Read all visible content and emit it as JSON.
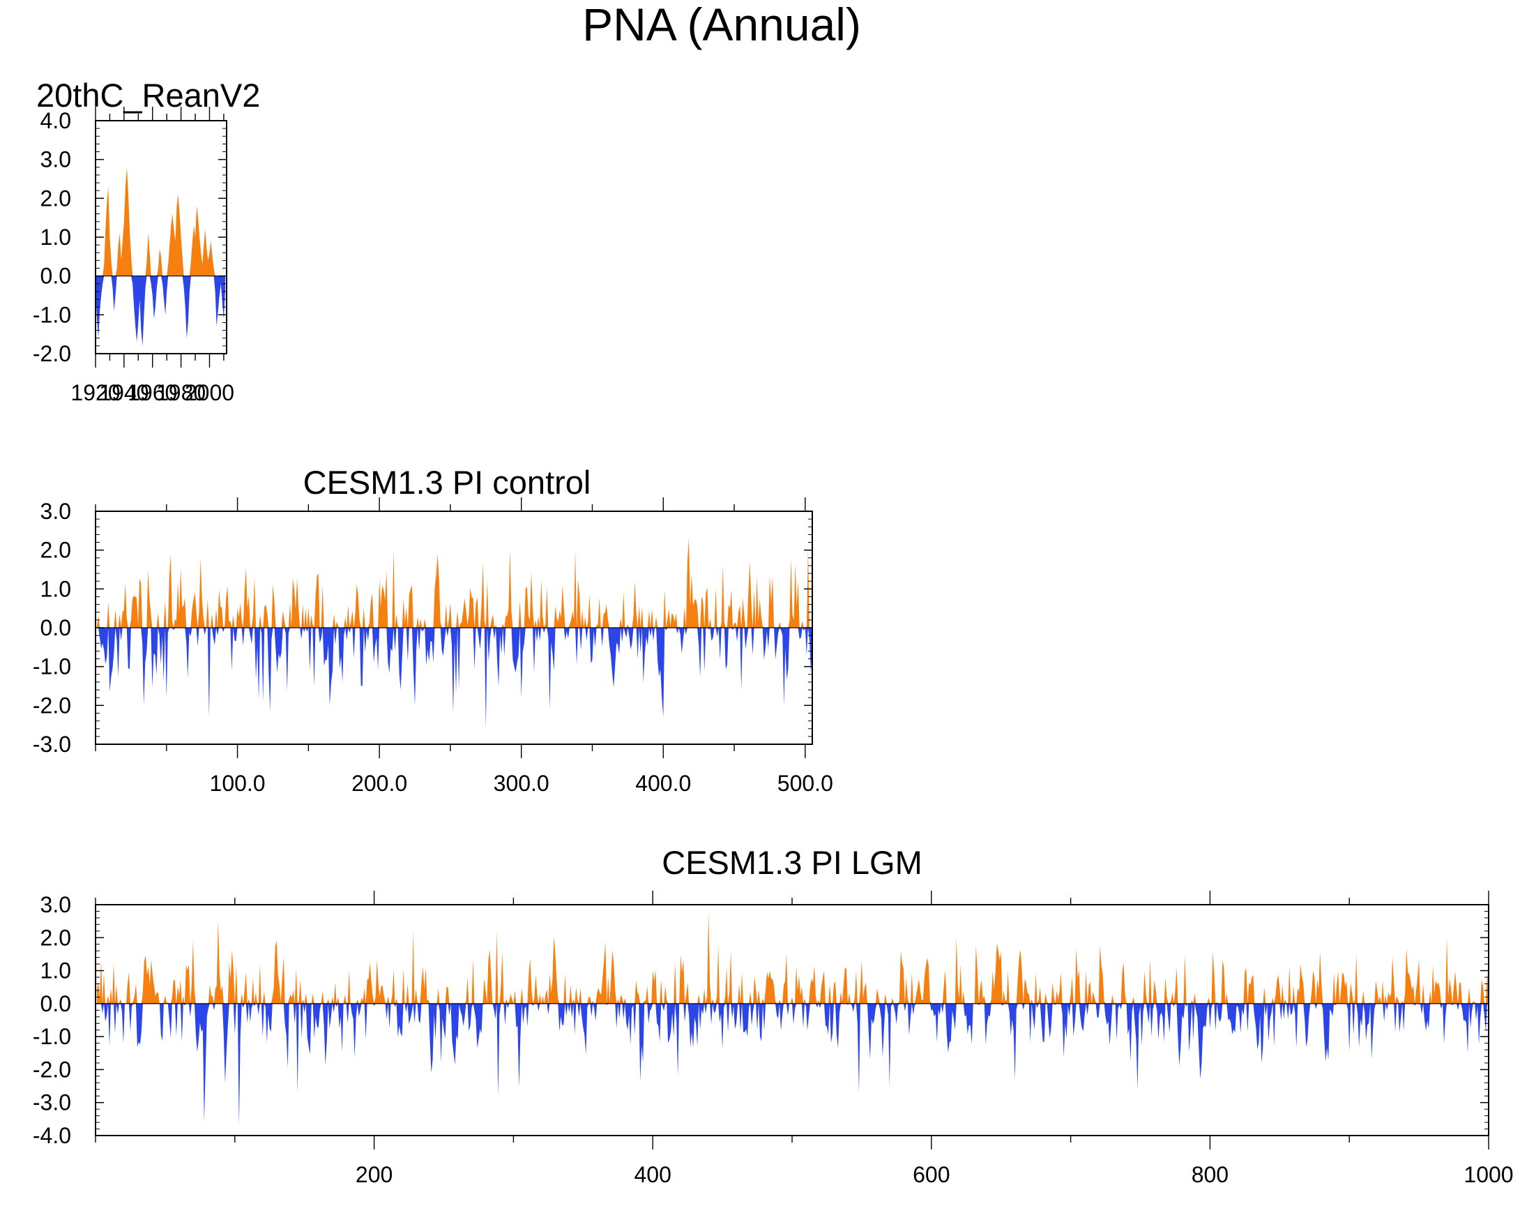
{
  "figure": {
    "title": "PNA (Annual)"
  },
  "colors": {
    "positive": "#f57f0f",
    "negative": "#2b45e8",
    "axis": "#000000"
  },
  "chart_data": [
    {
      "id": "reanalysis",
      "type": "area",
      "title": "20thC_ReanV2",
      "title_align": "left",
      "xlabel": "",
      "ylabel": "",
      "xlim": [
        1920,
        2012
      ],
      "ylim": [
        -2.0,
        4.0
      ],
      "yticks": [
        -2.0,
        -1.0,
        0.0,
        1.0,
        2.0,
        3.0,
        4.0
      ],
      "ytick_labels": [
        "-2.0",
        "-1.0",
        "0.0",
        "1.0",
        "2.0",
        "3.0",
        "4.0"
      ],
      "xticks": [
        1920,
        1940,
        1960,
        1980,
        2000
      ],
      "xtick_labels": [
        "1920",
        "1940",
        "1960",
        "1980",
        "2000"
      ],
      "x_start": 1920,
      "x_step": 1,
      "values": [
        -0.4,
        -1.1,
        -1.6,
        -0.9,
        -0.5,
        -0.2,
        0.3,
        1.2,
        1.9,
        2.3,
        1.0,
        0.4,
        -0.3,
        -0.9,
        -0.5,
        0.2,
        0.8,
        1.1,
        0.4,
        0.9,
        1.4,
        2.3,
        2.8,
        2.1,
        1.2,
        0.5,
        -0.2,
        -0.8,
        -1.3,
        -1.7,
        -1.2,
        -0.6,
        -1.4,
        -1.8,
        -1.0,
        -0.3,
        0.4,
        1.1,
        0.6,
        -0.2,
        -0.5,
        -1.1,
        -0.8,
        -0.3,
        0.2,
        0.7,
        0.5,
        -0.2,
        -0.6,
        -1.0,
        -0.4,
        0.3,
        0.8,
        1.3,
        1.6,
        1.2,
        0.9,
        1.8,
        2.1,
        1.6,
        1.0,
        0.5,
        -0.3,
        -0.8,
        -1.6,
        -1.2,
        -0.4,
        0.4,
        0.9,
        1.3,
        1.0,
        1.8,
        1.5,
        1.0,
        0.6,
        0.3,
        0.8,
        1.2,
        0.7,
        0.4,
        0.6,
        0.9,
        0.5,
        0.2,
        -0.4,
        -1.3,
        -0.9,
        -0.5,
        -0.2,
        -0.7,
        -1.1,
        -0.4
      ]
    },
    {
      "id": "pi_control",
      "type": "area",
      "title": "CESM1.3 PI control",
      "title_align": "center",
      "xlabel": "",
      "ylabel": "",
      "xlim": [
        0,
        505
      ],
      "ylim": [
        -3.0,
        3.0
      ],
      "yticks": [
        -3.0,
        -2.0,
        -1.0,
        0.0,
        1.0,
        2.0,
        3.0
      ],
      "ytick_labels": [
        "-3.0",
        "-2.0",
        "-1.0",
        "0.0",
        "1.0",
        "2.0",
        "3.0"
      ],
      "xticks": [
        100,
        200,
        300,
        400,
        500
      ],
      "xtick_labels": [
        "100.0",
        "200.0",
        "300.0",
        "400.0",
        "500.0"
      ],
      "generated": {
        "n": 505,
        "x_start": 1,
        "x_step": 1,
        "seed": 17,
        "spikes": [
          [
            50,
            -1.8
          ],
          [
            80,
            -2.3
          ],
          [
            118,
            -1.9
          ],
          [
            165,
            -2.0
          ],
          [
            210,
            2.0
          ],
          [
            225,
            -2.0
          ],
          [
            252,
            -2.2
          ],
          [
            275,
            -2.6
          ],
          [
            292,
            2.0
          ],
          [
            300,
            -1.8
          ],
          [
            320,
            -2.1
          ],
          [
            338,
            2.0
          ],
          [
            400,
            -2.3
          ],
          [
            418,
            2.3
          ],
          [
            455,
            -1.6
          ],
          [
            485,
            -2.0
          ],
          [
            490,
            1.8
          ],
          [
            502,
            2.0
          ]
        ]
      }
    },
    {
      "id": "pi_lgm",
      "type": "area",
      "title": "CESM1.3 PI LGM",
      "title_align": "center",
      "xlabel": "",
      "ylabel": "",
      "xlim": [
        0,
        1000
      ],
      "ylim": [
        -4.0,
        3.0
      ],
      "yticks": [
        -4.0,
        -3.0,
        -2.0,
        -1.0,
        0.0,
        1.0,
        2.0,
        3.0
      ],
      "ytick_labels": [
        "-4.0",
        "-3.0",
        "-2.0",
        "-1.0",
        "0.0",
        "1.0",
        "2.0",
        "3.0"
      ],
      "xticks": [
        200,
        400,
        600,
        800,
        1000
      ],
      "xtick_labels": [
        "200",
        "400",
        "600",
        "800",
        "1000"
      ],
      "generated": {
        "n": 1000,
        "x_start": 1,
        "x_step": 1,
        "seed": 29,
        "spikes": [
          [
            70,
            1.9
          ],
          [
            78,
            -3.6
          ],
          [
            93,
            -2.4
          ],
          [
            103,
            -3.7
          ],
          [
            145,
            -2.7
          ],
          [
            228,
            2.2
          ],
          [
            288,
            2.2
          ],
          [
            289,
            -2.8
          ],
          [
            418,
            -2.2
          ],
          [
            440,
            2.8
          ],
          [
            456,
            1.6
          ],
          [
            548,
            -2.7
          ],
          [
            570,
            -2.5
          ],
          [
            618,
            2.0
          ],
          [
            660,
            -2.3
          ],
          [
            748,
            -2.6
          ],
          [
            970,
            2.0
          ],
          [
            985,
            -1.5
          ]
        ]
      }
    }
  ]
}
